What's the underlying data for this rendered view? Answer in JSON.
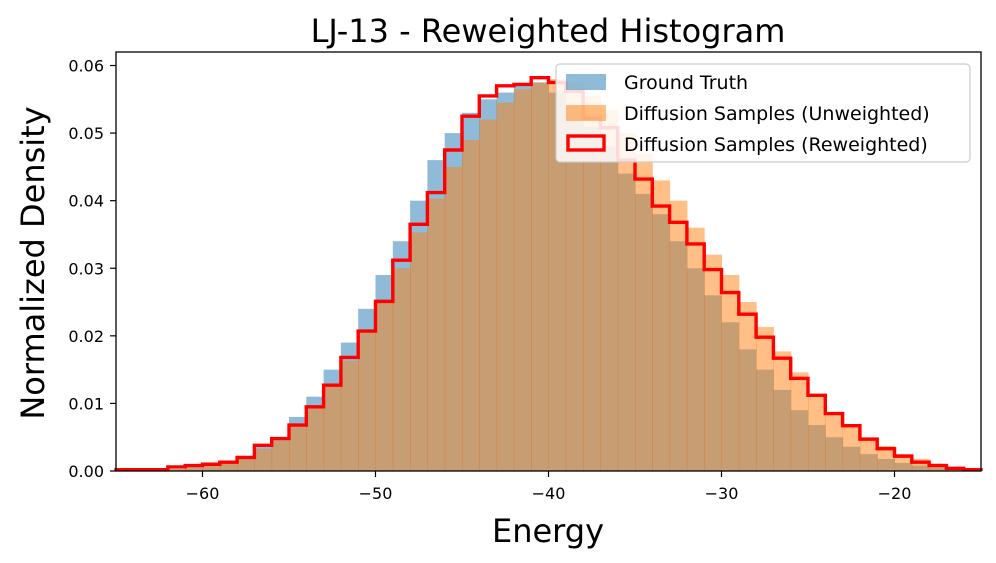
{
  "chart_data": {
    "type": "histogram",
    "title": "LJ-13 - Reweighted Histogram",
    "xlabel": "Energy",
    "ylabel": "Normalized Density",
    "xlim": [
      -65,
      -15
    ],
    "ylim": [
      0,
      0.062
    ],
    "bin_width": 1,
    "bin_start": -65,
    "x_ticks": [
      -60,
      -50,
      -40,
      -30,
      -20
    ],
    "x_tick_labels": [
      "−60",
      "−50",
      "−40",
      "−30",
      "−20"
    ],
    "y_ticks": [
      0.0,
      0.01,
      0.02,
      0.03,
      0.04,
      0.05,
      0.06
    ],
    "y_tick_labels": [
      "0.00",
      "0.01",
      "0.02",
      "0.03",
      "0.04",
      "0.05",
      "0.06"
    ],
    "legend_position": "top-right",
    "colors": {
      "ground_truth": "#1f77b4",
      "unweighted": "#ff7f0e",
      "reweighted": "#ff0000"
    },
    "series": [
      {
        "name": "Ground Truth",
        "style": "filled",
        "values": [
          0,
          0,
          0,
          0.0003,
          0.0006,
          0.001,
          0.0012,
          0.0022,
          0.0038,
          0.005,
          0.008,
          0.011,
          0.015,
          0.019,
          0.024,
          0.029,
          0.034,
          0.04,
          0.046,
          0.05,
          0.053,
          0.055,
          0.056,
          0.057,
          0.0575,
          0.056,
          0.054,
          0.051,
          0.048,
          0.044,
          0.041,
          0.038,
          0.034,
          0.03,
          0.026,
          0.022,
          0.018,
          0.015,
          0.012,
          0.009,
          0.0068,
          0.005,
          0.0036,
          0.0025,
          0.0018,
          0.0012,
          0.0008,
          0.0005,
          0.0003,
          0.0002
        ]
      },
      {
        "name": "Diffusion Samples (Unweighted)",
        "style": "filled",
        "values": [
          0,
          0,
          0,
          0.0003,
          0.0005,
          0.0009,
          0.0011,
          0.002,
          0.0033,
          0.0045,
          0.0068,
          0.0093,
          0.0128,
          0.0163,
          0.0206,
          0.0253,
          0.03,
          0.0353,
          0.0403,
          0.045,
          0.049,
          0.052,
          0.0545,
          0.0565,
          0.0575,
          0.058,
          0.0575,
          0.0555,
          0.0535,
          0.05,
          0.047,
          0.043,
          0.04,
          0.036,
          0.032,
          0.029,
          0.025,
          0.0213,
          0.0177,
          0.0146,
          0.0114,
          0.0087,
          0.0068,
          0.005,
          0.0037,
          0.0025,
          0.0018,
          0.0011,
          0.0006,
          0.0003
        ]
      },
      {
        "name": "Diffusion Samples (Reweighted)",
        "style": "step",
        "values": [
          0.0002,
          0.0002,
          0.0002,
          0.0006,
          0.0008,
          0.001,
          0.0013,
          0.002,
          0.0038,
          0.0048,
          0.0068,
          0.0095,
          0.0127,
          0.0168,
          0.0207,
          0.0251,
          0.0312,
          0.0365,
          0.0412,
          0.0475,
          0.0525,
          0.0555,
          0.057,
          0.0572,
          0.0582,
          0.0575,
          0.0562,
          0.0522,
          0.0508,
          0.046,
          0.0432,
          0.0392,
          0.0368,
          0.0336,
          0.0298,
          0.0264,
          0.0232,
          0.0198,
          0.0167,
          0.0137,
          0.0112,
          0.0085,
          0.0067,
          0.0047,
          0.0033,
          0.0022,
          0.0013,
          0.0008,
          0.0004,
          0.0002
        ]
      }
    ]
  }
}
